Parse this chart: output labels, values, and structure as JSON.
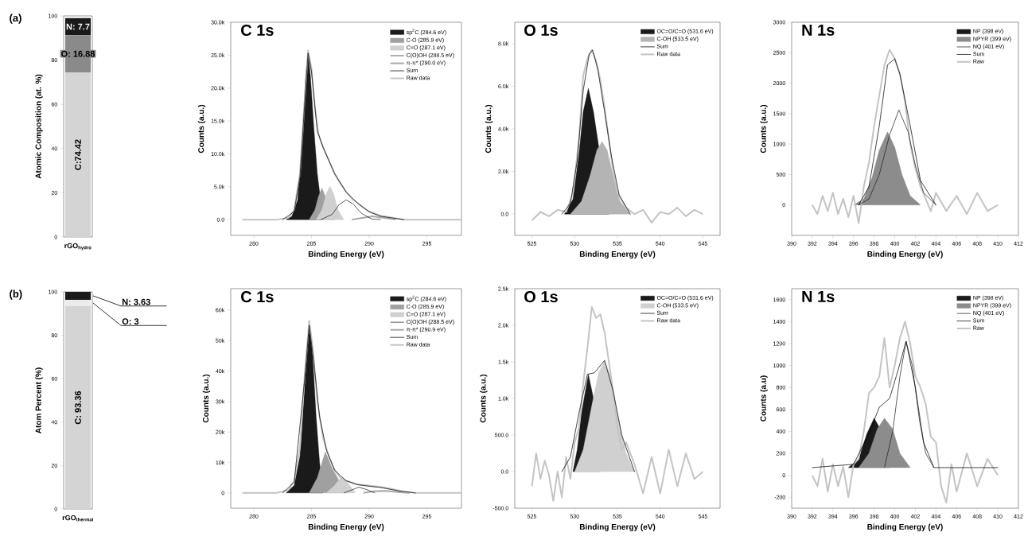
{
  "chart_data": [
    {
      "type": "bar",
      "stacked": true,
      "categories": [
        "rGO$_{hydro}$"
      ],
      "ylabel": "Atomic Composition (at. %)",
      "ylim": [
        0,
        100
      ],
      "yticks": [
        0,
        20,
        40,
        60,
        80,
        100
      ],
      "annotations": [
        "(a)"
      ],
      "series": [
        {
          "color": "#d4d4d4",
          "values": [
            74.42
          ],
          "value_labels": [
            "C:74.42"
          ]
        },
        {
          "color": "#8a8a8a",
          "values": [
            16.88
          ],
          "value_labels": [
            "O: 16.88"
          ]
        },
        {
          "color": "#1a1a1a",
          "values": [
            7.7
          ],
          "value_labels": [
            "N: 7.7"
          ]
        }
      ]
    },
    {
      "type": "area",
      "title": "C 1s",
      "xlabel": "Binding Energy (eV)",
      "ylabel": "Counts (a.u.)",
      "xlim": [
        278,
        298
      ],
      "xticks": [
        280,
        285,
        290,
        295
      ],
      "ylim": [
        -2400,
        30000
      ],
      "yticks": [
        {
          "value": 0,
          "label": "0.0"
        },
        {
          "value": 5000,
          "label": "5.0k"
        },
        {
          "value": 10000,
          "label": "10.0k"
        },
        {
          "value": 15000,
          "label": "15.0k"
        },
        {
          "value": 20000,
          "label": "20.0k"
        },
        {
          "value": 25000,
          "label": "25.0k"
        },
        {
          "value": 30000,
          "label": "30.0k"
        }
      ],
      "legend": "top right",
      "series": [
        {
          "name": "sp$^{2}$C (284.6 eV)",
          "type": "area",
          "color": "#1a1a1a",
          "x": [
            282.8,
            283.3,
            283.8,
            284.2,
            284.5,
            284.7,
            284.9,
            285.2,
            285.5,
            285.8,
            286.0
          ],
          "values": [
            0,
            500,
            3000,
            12000,
            22000,
            25300,
            22000,
            14000,
            7000,
            null,
            0
          ]
        },
        {
          "name": "C-O (285.9 eV)",
          "type": "area",
          "color": "#a0a0a0",
          "x": [
            284.8,
            285.3,
            285.6,
            285.9,
            286.2,
            286.5,
            287.0
          ],
          "values": [
            0,
            1500,
            3500,
            4800,
            3500,
            null,
            0
          ]
        },
        {
          "name": "C=O (287.1 eV)",
          "type": "area",
          "color": "#d0d0d0",
          "x": [
            285.4,
            285.9,
            286.3,
            286.6,
            286.9,
            287.3,
            287.8
          ],
          "values": [
            0,
            1500,
            4000,
            5100,
            4000,
            1500,
            0
          ]
        },
        {
          "name": "C(O)OH (288.5 eV)",
          "type": "line",
          "color": "#1a1a1a",
          "x": [
            285.8,
            286.8,
            287.4,
            288.0,
            288.6,
            289.3,
            290.2,
            291.0
          ],
          "values": [
            0,
            800,
            2300,
            3000,
            2400,
            1000,
            100,
            0
          ]
        },
        {
          "name": "π-π* (290.0 eV)",
          "type": "line",
          "color": "#a8a8a8",
          "x": [
            288.5,
            289.5,
            290.3,
            291.2,
            292.3
          ],
          "values": [
            0,
            300,
            500,
            300,
            0
          ]
        },
        {
          "name": "Sum",
          "type": "line",
          "line_style": "dotted",
          "color": "#000000",
          "x": [
            282.5,
            283.5,
            284.0,
            284.4,
            284.7,
            285.0,
            285.5,
            286.0,
            287.0,
            288.0,
            289.0,
            290.0,
            291.0,
            293.0
          ],
          "values": [
            0,
            1200,
            6500,
            17500,
            25300,
            22500,
            13500,
            11000,
            7000,
            4200,
            2500,
            1200,
            500,
            0
          ]
        },
        {
          "name": "Raw data",
          "type": "line",
          "color": "#c4c4c4",
          "x": [
            279,
            282,
            283,
            283.5,
            284,
            284.4,
            284.7,
            285,
            285.3,
            285.6,
            286,
            286.5,
            287,
            287.5,
            288,
            288.5,
            289,
            289.5,
            290,
            290.5,
            291,
            292,
            293,
            298
          ],
          "values": [
            0,
            0,
            300,
            1500,
            7000,
            18000,
            25700,
            23000,
            17000,
            13000,
            11000,
            9000,
            7000,
            5500,
            4200,
            3200,
            2500,
            1800,
            1200,
            900,
            600,
            300,
            0,
            0
          ]
        }
      ]
    },
    {
      "type": "area",
      "title": "O 1s",
      "xlabel": "Binding Energy (eV)",
      "ylabel": "Counts (a.u.)",
      "xlim": [
        523,
        547
      ],
      "xticks": [
        525,
        530,
        535,
        540,
        545
      ],
      "ylim": [
        -1000,
        9000
      ],
      "yticks": [
        {
          "value": 0,
          "label": "0.0"
        },
        {
          "value": 2000,
          "label": "2.0k"
        },
        {
          "value": 4000,
          "label": "4.0k"
        },
        {
          "value": 6000,
          "label": "6.0k"
        },
        {
          "value": 8000,
          "label": "8.0k"
        }
      ],
      "legend": "top right",
      "series": [
        {
          "name": "OC=O/C=O (531.6 eV)",
          "type": "area",
          "color": "#1a1a1a",
          "x": [
            528.8,
            529.8,
            530.5,
            531.0,
            531.6,
            532.2,
            532.8,
            533.4,
            534.0
          ],
          "values": [
            0,
            700,
            2800,
            4800,
            5900,
            4800,
            null,
            null,
            0
          ]
        },
        {
          "name": "C-OH (533.5 eV)",
          "type": "area",
          "color": "#b4b4b4",
          "x": [
            529.5,
            530.8,
            531.8,
            532.6,
            533.2,
            533.8,
            534.5,
            535.3,
            536.5
          ],
          "values": [
            0,
            600,
            1800,
            3000,
            3400,
            3000,
            1800,
            600,
            0
          ]
        },
        {
          "name": "Sum",
          "type": "line",
          "line_style": "dotted",
          "color": "#000000",
          "x": [
            528.5,
            529.5,
            530.3,
            531.0,
            531.7,
            532.1,
            532.7,
            533.5,
            534.3,
            535.2,
            536.5
          ],
          "values": [
            0,
            500,
            2500,
            5800,
            7500,
            7700,
            6800,
            4800,
            2700,
            900,
            0
          ]
        },
        {
          "name": "Raw data",
          "type": "line",
          "color": "#c4c4c4",
          "x": [
            525,
            526,
            527,
            528,
            529,
            529.8,
            530.5,
            531,
            531.5,
            532,
            532.5,
            533,
            533.5,
            534,
            534.5,
            535,
            536,
            537,
            538,
            539,
            540,
            541,
            542,
            543,
            544,
            545
          ],
          "values": [
            -300,
            100,
            -100,
            200,
            100,
            1000,
            3500,
            6500,
            7300,
            7700,
            7200,
            6300,
            5000,
            3500,
            2000,
            1000,
            300,
            0,
            200,
            -400,
            100,
            0,
            300,
            -100,
            200,
            0
          ]
        }
      ]
    },
    {
      "type": "area",
      "title": "N 1s",
      "xlabel": "Binding Energy (eV)",
      "ylabel": "Counts (a.u.)",
      "xlim": [
        390,
        412
      ],
      "xticks": [
        390,
        392,
        394,
        396,
        398,
        400,
        402,
        404,
        406,
        408,
        410,
        412
      ],
      "ylim": [
        -500,
        3000
      ],
      "yticks": [
        0,
        500,
        1000,
        1500,
        2000,
        2500,
        3000
      ],
      "legend": "top right",
      "series": [
        {
          "name": "NP (398 eV)",
          "type": "area",
          "color": "#1a1a1a"
        },
        {
          "name": "NPYR (399 eV)",
          "type": "area",
          "color": "#8c8c8c",
          "x": [
            396,
            397,
            397.8,
            398.5,
            399.3,
            400,
            400.7,
            401.5,
            402.5
          ],
          "values": [
            0,
            100,
            450,
            900,
            1200,
            950,
            500,
            150,
            0
          ]
        },
        {
          "name": "NQ (401 eV)",
          "type": "line",
          "color": "#1a1a1a",
          "x": [
            396.5,
            397.5,
            398.5,
            399.5,
            400.4,
            401.3,
            402,
            402.8,
            404
          ],
          "values": [
            0,
            100,
            500,
            1150,
            1560,
            1200,
            650,
            200,
            0
          ]
        },
        {
          "name": "Sum",
          "type": "line",
          "line_style": "dotted",
          "color": "#000000",
          "x": [
            396.5,
            397.5,
            398.5,
            399.3,
            400,
            400.5,
            401.5,
            402.5,
            404
          ],
          "values": [
            0,
            300,
            1300,
            2300,
            2400,
            2150,
            1300,
            400,
            0
          ]
        },
        {
          "name": "Raw",
          "type": "line",
          "color": "#c4c4c4",
          "x": [
            392,
            392.5,
            393,
            393.5,
            394,
            394.5,
            395,
            395.5,
            396,
            396.5,
            397,
            397.5,
            398,
            398.5,
            399,
            399.5,
            400,
            400.5,
            401,
            401.5,
            402,
            402.5,
            403,
            403.5,
            404,
            405,
            406,
            407,
            408,
            409,
            410
          ],
          "values": [
            0,
            -150,
            150,
            -100,
            200,
            -150,
            100,
            -200,
            150,
            -300,
            300,
            700,
            1300,
            1800,
            2300,
            2550,
            2400,
            2150,
            1700,
            1000,
            600,
            300,
            100,
            -100,
            200,
            -100,
            150,
            -150,
            200,
            -100,
            0
          ]
        }
      ]
    },
    {
      "type": "bar",
      "stacked": true,
      "categories": [
        "rGO$_{thermal}$"
      ],
      "ylabel": "Atom Percent (%)",
      "ylim": [
        0,
        100
      ],
      "yticks": [
        0,
        20,
        40,
        60,
        80,
        100
      ],
      "annotations": [
        "(b)"
      ],
      "series": [
        {
          "color": "#d4d4d4",
          "values": [
            93.36
          ],
          "value_labels": [
            "C: 93.36"
          ]
        },
        {
          "color": "#ececec",
          "values": [
            3
          ],
          "value_labels": [
            "O: 3"
          ]
        },
        {
          "color": "#1a1a1a",
          "values": [
            3.63
          ],
          "value_labels": [
            "N: 3.63"
          ]
        }
      ]
    },
    {
      "type": "area",
      "title": "C 1s",
      "xlabel": "Binding Energy (eV)",
      "ylabel": "Counts (a.u.)",
      "xlim": [
        278,
        298
      ],
      "xticks": [
        280,
        285,
        290,
        295
      ],
      "ylim": [
        -5000,
        67000
      ],
      "yticks": [
        {
          "value": 0,
          "label": "0"
        },
        {
          "value": 10000,
          "label": "10k"
        },
        {
          "value": 20000,
          "label": "20k"
        },
        {
          "value": 30000,
          "label": "30k"
        },
        {
          "value": 40000,
          "label": "40k"
        },
        {
          "value": 50000,
          "label": "50k"
        },
        {
          "value": 60000,
          "label": "60k"
        }
      ],
      "legend": "top right",
      "series": [
        {
          "name": "sp$^{2}$C (284.6 eV)",
          "type": "area",
          "color": "#1a1a1a",
          "x": [
            282.8,
            283.5,
            284.0,
            284.4,
            284.8,
            285.1,
            285.4,
            285.7,
            286.0
          ],
          "values": [
            0,
            2500,
            12000,
            35000,
            55000,
            45000,
            25000,
            10000,
            0
          ]
        },
        {
          "name": "C-O (285.9 eV)",
          "type": "area",
          "color": "#a0a0a0",
          "x": [
            284.8,
            285.5,
            286.2,
            286.8,
            287.5,
            288.0
          ],
          "values": [
            0,
            5000,
            13500,
            8000,
            null,
            0
          ]
        },
        {
          "name": "C=O (287.1 eV)",
          "type": "area",
          "color": "#d0d0d0",
          "x": [
            286.3,
            287.0,
            287.6,
            288.2,
            288.8
          ],
          "values": [
            0,
            2500,
            5300,
            3000,
            0
          ]
        },
        {
          "name": "C(O)OH (288.5 eV)",
          "type": "line",
          "color": "#1a1a1a",
          "x": [
            287.8,
            288.5,
            289.1,
            289.7,
            290.5
          ],
          "values": [
            0,
            1000,
            1900,
            1200,
            0
          ]
        },
        {
          "name": "π-π* (290.9 eV)",
          "type": "line",
          "color": "#a8a8a8",
          "x": [
            289.5,
            290.5,
            291.5,
            292.5,
            293.5
          ],
          "values": [
            0,
            600,
            700,
            300,
            0
          ]
        },
        {
          "name": "Sum",
          "type": "line",
          "line_style": "dotted",
          "color": "#000000",
          "x": [
            282.5,
            283.5,
            284.4,
            284.8,
            285.2,
            285.7,
            286.3,
            287.0,
            288.0,
            289.0,
            290.0,
            291.0,
            292.5,
            294.0
          ],
          "values": [
            0,
            3500,
            37000,
            55000,
            43000,
            25000,
            14000,
            7500,
            4000,
            2700,
            2200,
            1800,
            700,
            0
          ]
        },
        {
          "name": "Raw data",
          "type": "line",
          "color": "#c4c4c4",
          "x": [
            279,
            282,
            283,
            283.5,
            284,
            284.4,
            284.8,
            285.1,
            285.5,
            286,
            286.5,
            287,
            287.5,
            288,
            289,
            290,
            291,
            292,
            293,
            294,
            298
          ],
          "values": [
            0,
            0,
            1000,
            4000,
            15000,
            38000,
            56500,
            48000,
            30000,
            18000,
            12000,
            7500,
            5000,
            4000,
            2800,
            2400,
            2000,
            1300,
            500,
            0,
            0
          ]
        }
      ]
    },
    {
      "type": "area",
      "title": "O 1s",
      "xlabel": "Binding Energy (eV)",
      "ylabel": "Counts (a.u.)",
      "xlim": [
        523,
        547
      ],
      "xticks": [
        525,
        530,
        535,
        540,
        545
      ],
      "ylim": [
        -500,
        2500
      ],
      "yticks": [
        {
          "value": -500,
          "label": "-500.0"
        },
        {
          "value": 0,
          "label": "0.0"
        },
        {
          "value": 500,
          "label": "500.0"
        },
        {
          "value": 1000,
          "label": "1.0k"
        },
        {
          "value": 1500,
          "label": "1.5k"
        },
        {
          "value": 2000,
          "label": "2.0k"
        },
        {
          "value": 2500,
          "label": "2.5k"
        }
      ],
      "legend": "top right",
      "series": [
        {
          "name": "OC=O/C=O (531.6 eV)",
          "type": "area",
          "color": "#1a1a1a",
          "x": [
            529.8,
            530.3,
            530.8,
            531.6,
            532.2,
            532.7,
            533.0
          ],
          "values": [
            0,
            300,
            800,
            1330,
            1000,
            null,
            0
          ]
        },
        {
          "name": "C-OH (533.5 eV)",
          "type": "area",
          "color": "#d0d0d0",
          "x": [
            530,
            531,
            532,
            532.8,
            533.5,
            534.2,
            535,
            536,
            537
          ],
          "values": [
            0,
            300,
            900,
            1350,
            1520,
            1300,
            800,
            250,
            0
          ]
        },
        {
          "name": "Sum",
          "type": "line",
          "line_style": "dotted",
          "color": "#000000",
          "x": [
            528.5,
            529.5,
            530.5,
            531.5,
            532.3,
            533.5,
            534.5,
            535.5,
            537
          ],
          "values": [
            0,
            200,
            800,
            1330,
            1350,
            1520,
            1100,
            500,
            0
          ]
        },
        {
          "name": "Raw data",
          "type": "line",
          "color": "#c4c4c4",
          "x": [
            525,
            525.5,
            526,
            526.5,
            527,
            527.5,
            528,
            528.5,
            529,
            529.5,
            530,
            530.5,
            531,
            531.5,
            532,
            532.5,
            533,
            533.5,
            534,
            534.5,
            535,
            535.5,
            536,
            537,
            538,
            539,
            540,
            541,
            542,
            543,
            544,
            545
          ],
          "values": [
            -200,
            250,
            -100,
            150,
            -50,
            -400,
            0,
            -350,
            200,
            -100,
            400,
            600,
            1200,
            1700,
            2250,
            2100,
            2150,
            1900,
            1500,
            1100,
            600,
            300,
            400,
            100,
            -300,
            200,
            -300,
            300,
            -200,
            250,
            -100,
            0
          ]
        }
      ]
    },
    {
      "type": "area",
      "title": "N 1s",
      "xlabel": "Binding Energy (eV)",
      "ylabel": "Counts (a.u)",
      "xlim": [
        390,
        412
      ],
      "xticks": [
        390,
        392,
        394,
        396,
        398,
        400,
        402,
        404,
        406,
        408,
        410,
        412
      ],
      "ylim": [
        -300,
        1700
      ],
      "yticks": [
        -200,
        0,
        200,
        400,
        600,
        800,
        1000,
        1200,
        1400,
        1600
      ],
      "legend": "top right",
      "series": [
        {
          "name": "NP (398 eV)",
          "type": "area",
          "color": "#1a1a1a",
          "x": [
            395.5,
            396.5,
            397.3,
            398,
            398.6,
            399.5
          ],
          "values": [
            70,
            150,
            380,
            520,
            420,
            70
          ]
        },
        {
          "name": "NPYR (399 eV)",
          "type": "area",
          "color": "#8c8c8c",
          "x": [
            396.5,
            397.5,
            398.3,
            399,
            399.8,
            400.5,
            401.5
          ],
          "values": [
            70,
            200,
            420,
            520,
            420,
            200,
            70
          ]
        },
        {
          "name": "NQ (401 eV)",
          "type": "line",
          "color": "#1a1a1a",
          "x": [
            399,
            399.8,
            400.5,
            401.1,
            401.7,
            402.4,
            403,
            403.8
          ],
          "values": [
            70,
            400,
            900,
            1220,
            1000,
            500,
            200,
            70
          ]
        },
        {
          "name": "Sum",
          "type": "line",
          "line_style": "dotted",
          "color": "#000000",
          "x": [
            392,
            396,
            397.5,
            398.5,
            399.5,
            400.3,
            401.1,
            402,
            402.8,
            403.8,
            410
          ],
          "values": [
            70,
            100,
            380,
            620,
            700,
            950,
            1220,
            800,
            300,
            70,
            70
          ]
        },
        {
          "name": "Raw",
          "type": "line",
          "color": "#c4c4c4",
          "x": [
            392,
            392.5,
            393,
            393.5,
            394,
            394.5,
            395,
            395.5,
            396,
            396.5,
            397,
            397.5,
            398,
            398.5,
            399,
            399.5,
            400,
            400.5,
            401,
            401.5,
            402,
            402.5,
            403,
            403.5,
            404,
            404.5,
            405,
            405.5,
            406,
            407,
            408,
            409,
            410
          ],
          "values": [
            0,
            -100,
            150,
            -150,
            100,
            -100,
            80,
            -200,
            100,
            150,
            400,
            750,
            800,
            900,
            1250,
            800,
            1000,
            1250,
            1400,
            1200,
            900,
            800,
            650,
            350,
            300,
            -100,
            -250,
            100,
            -150,
            200,
            -100,
            150,
            0
          ]
        }
      ]
    }
  ]
}
